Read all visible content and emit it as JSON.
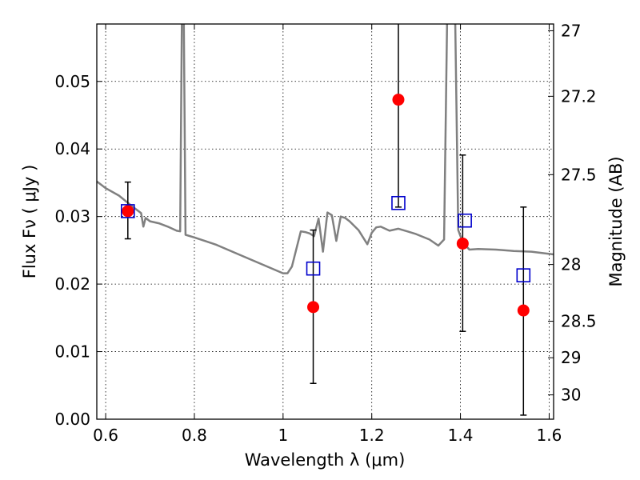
{
  "chart_data": {
    "type": "scatter",
    "title": "",
    "xlabel": "Wavelength  λ (μm)",
    "ylabel": "Flux  Fν  ( μJy )",
    "ylabel_right": "Magnitude (AB)",
    "xlim": [
      0.58,
      1.61
    ],
    "ylim": [
      0.0,
      0.0585
    ],
    "grid": true,
    "x_ticks": [
      0.6,
      0.8,
      1.0,
      1.2,
      1.4,
      1.6
    ],
    "x_tick_labels": [
      "0.6",
      "0.8",
      "1",
      "1.2",
      "1.4",
      "1.6"
    ],
    "y_ticks": [
      0.0,
      0.01,
      0.02,
      0.03,
      0.04,
      0.05
    ],
    "y_tick_labels": [
      "0.00",
      "0.01",
      "0.02",
      "0.03",
      "0.04",
      "0.05"
    ],
    "right_ticks": [
      {
        "label": "27",
        "flux": 0.0575
      },
      {
        "label": "27.2",
        "flux": 0.0478
      },
      {
        "label": "27.5",
        "flux": 0.0362
      },
      {
        "label": "28",
        "flux": 0.0229
      },
      {
        "label": "28.5",
        "flux": 0.0145
      },
      {
        "label": "29",
        "flux": 0.0091
      },
      {
        "label": "30",
        "flux": 0.0036
      }
    ],
    "series": [
      {
        "kind": "observed",
        "marker": "circle",
        "color": "#ff0000",
        "x": [
          0.65,
          1.068,
          1.26,
          1.405,
          1.542
        ],
        "y": [
          0.0308,
          0.0166,
          0.0473,
          0.026,
          0.0161
        ],
        "yerr_low": [
          0.0041,
          0.0113,
          0.0159,
          0.013,
          0.0155
        ],
        "yerr_high": [
          0.0043,
          0.0114,
          0.0155,
          0.0131,
          0.0153
        ]
      },
      {
        "kind": "model",
        "marker": "square",
        "color": "#0000cc",
        "x": [
          0.65,
          1.068,
          1.26,
          1.41,
          1.542
        ],
        "y": [
          0.0308,
          0.0223,
          0.032,
          0.0294,
          0.0213
        ]
      },
      {
        "kind": "template",
        "style": "line",
        "color": "#808080",
        "x": [
          0.58,
          0.6,
          0.63,
          0.66,
          0.68,
          0.685,
          0.69,
          0.7,
          0.72,
          0.74,
          0.76,
          0.768,
          0.772,
          0.776,
          0.78,
          0.8,
          0.85,
          0.9,
          1.0,
          1.01,
          1.02,
          1.04,
          1.05,
          1.06,
          1.07,
          1.08,
          1.09,
          1.1,
          1.11,
          1.12,
          1.13,
          1.14,
          1.15,
          1.17,
          1.19,
          1.2,
          1.21,
          1.22,
          1.24,
          1.26,
          1.28,
          1.3,
          1.33,
          1.35,
          1.363,
          1.37,
          1.376,
          1.382,
          1.388,
          1.395,
          1.405,
          1.42,
          1.44,
          1.48,
          1.52,
          1.56,
          1.61
        ],
        "y": [
          0.0352,
          0.0342,
          0.0331,
          0.0315,
          0.0305,
          0.0285,
          0.0298,
          0.0293,
          0.029,
          0.0285,
          0.0279,
          0.0278,
          0.06,
          0.06,
          0.0273,
          0.0269,
          0.0258,
          0.0244,
          0.0216,
          0.0216,
          0.0226,
          0.0278,
          0.0277,
          0.0275,
          0.0271,
          0.0297,
          0.0248,
          0.0306,
          0.0302,
          0.0264,
          0.03,
          0.0298,
          0.0293,
          0.028,
          0.0259,
          0.0276,
          0.0284,
          0.0285,
          0.0279,
          0.0282,
          0.0278,
          0.0274,
          0.0266,
          0.0257,
          0.0266,
          0.06,
          0.06,
          0.06,
          0.06,
          0.028,
          0.0262,
          0.0251,
          0.0252,
          0.0251,
          0.0249,
          0.0248,
          0.0244
        ]
      }
    ]
  }
}
